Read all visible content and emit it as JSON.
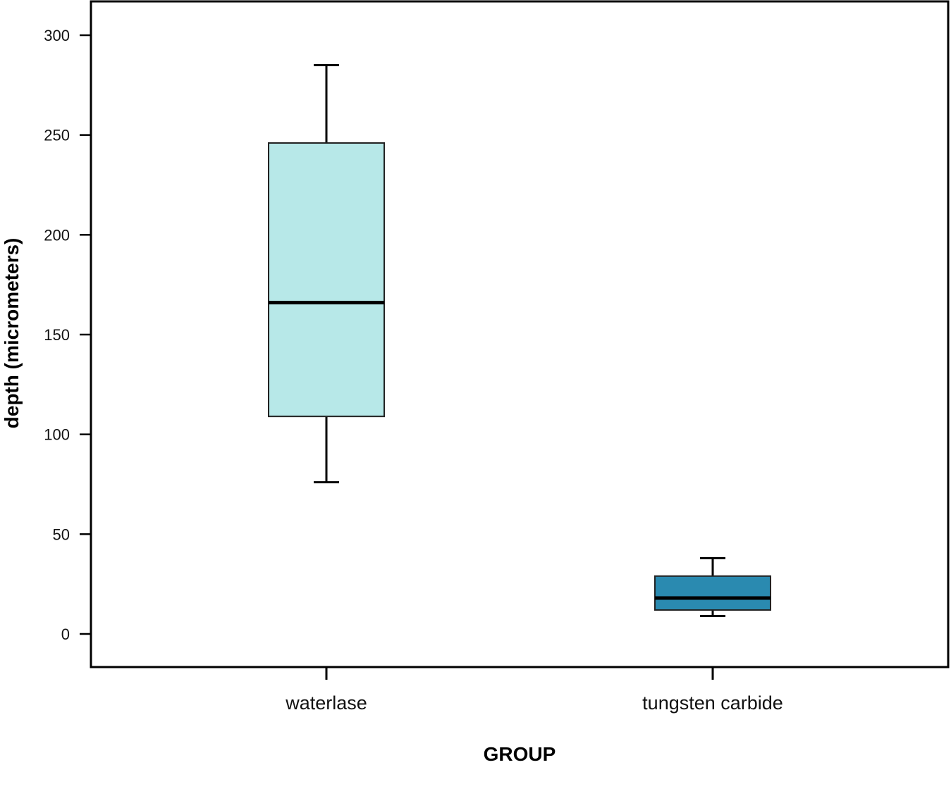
{
  "chart_data": {
    "type": "box",
    "xlabel": "GROUP",
    "ylabel": "depth (micrometers)",
    "ylim": [
      -17,
      318
    ],
    "yticks": [
      0,
      50,
      100,
      150,
      200,
      250,
      300
    ],
    "ytick_labels": [
      "0",
      "50",
      "100",
      "150",
      "200",
      "250",
      "300"
    ],
    "grid": false,
    "legend": "none",
    "categories": [
      "waterlase",
      "tungsten carbide"
    ],
    "boxes": [
      {
        "category": "waterlase",
        "min": 76,
        "q1": 109,
        "median": 166,
        "q3": 246,
        "max": 285,
        "color": "#b7e8e8"
      },
      {
        "category": "tungsten carbide",
        "min": 9,
        "q1": 12,
        "median": 18,
        "q3": 29,
        "max": 38,
        "color": "#2a8ab0"
      }
    ]
  }
}
